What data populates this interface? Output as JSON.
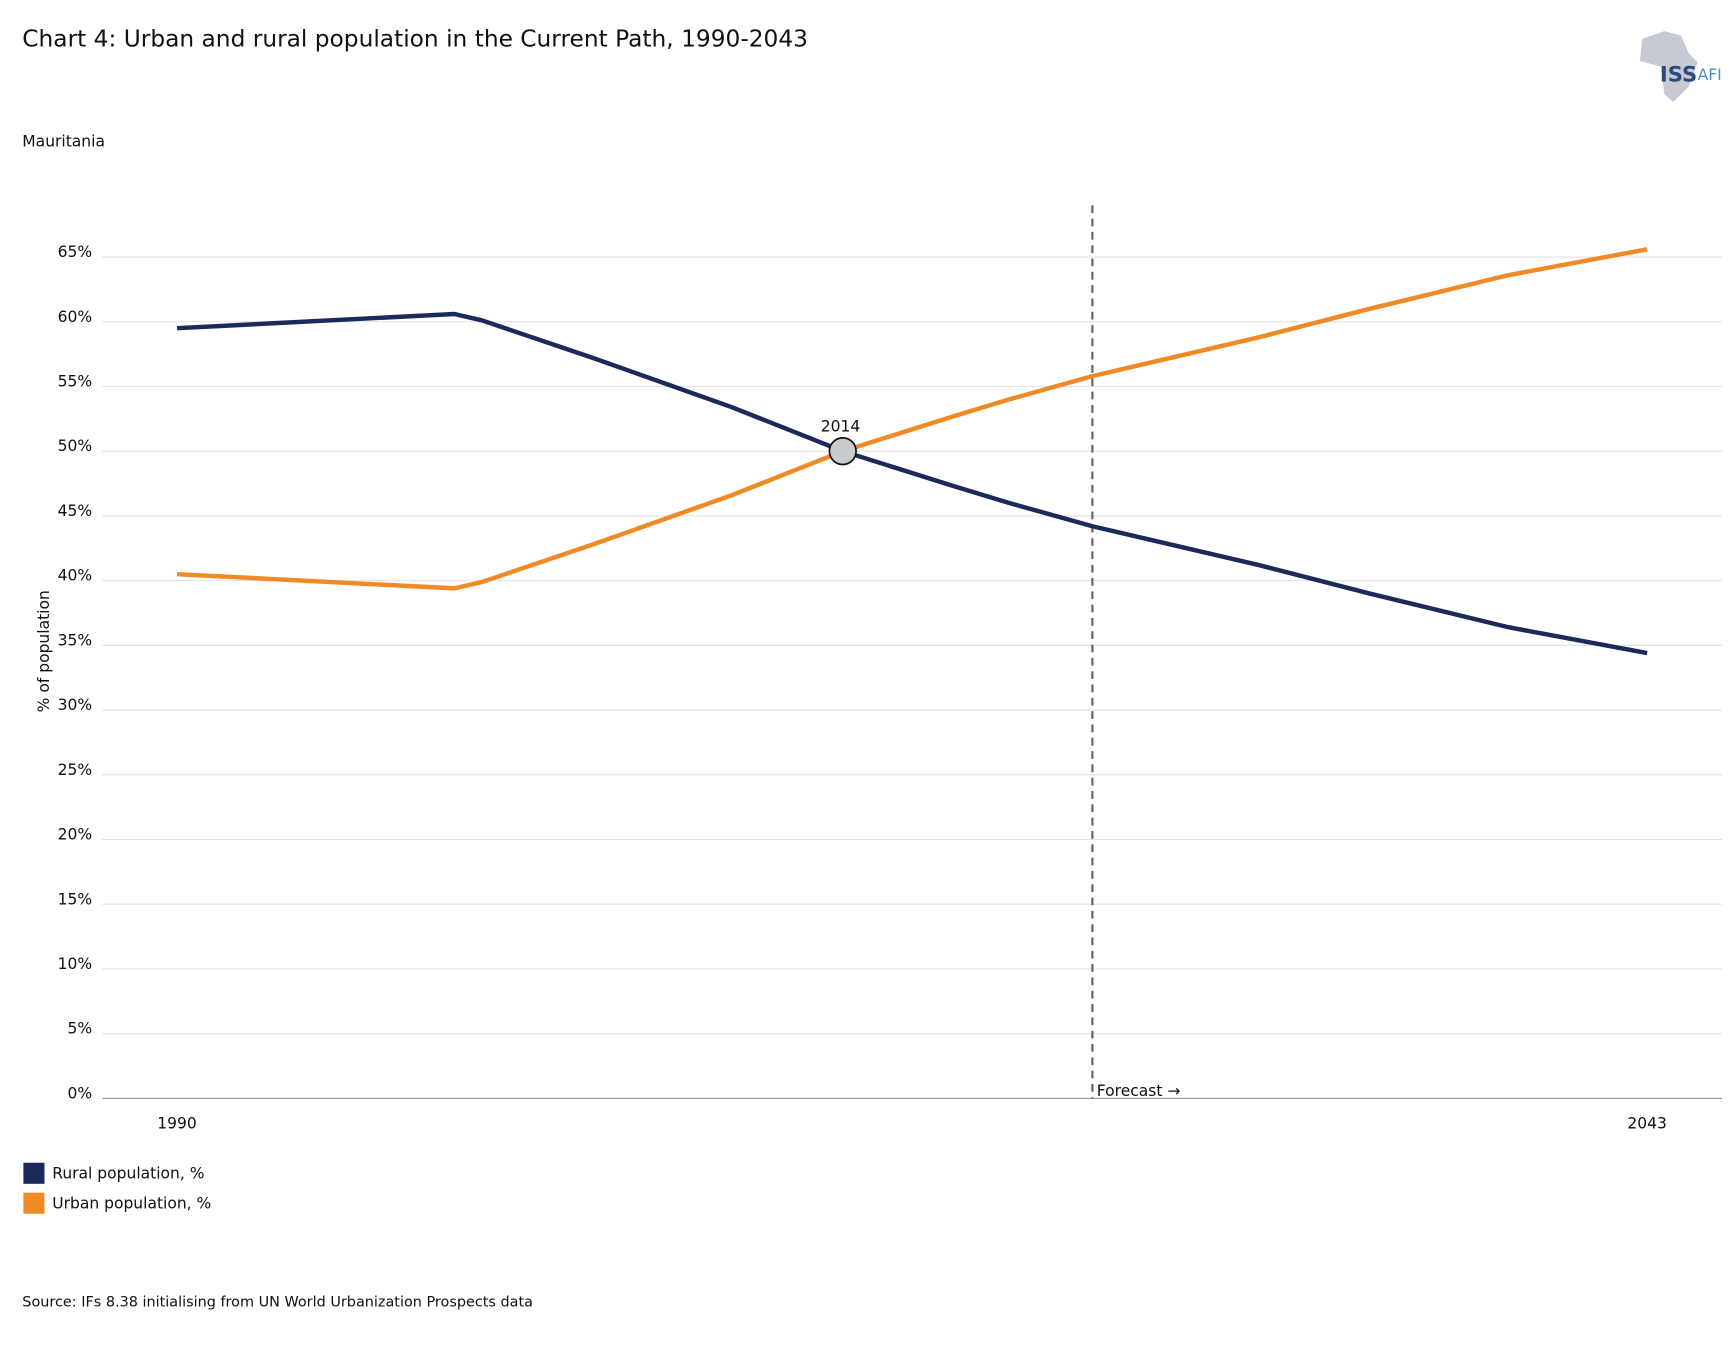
{
  "chart_data": {
    "type": "line",
    "title": "Chart 4: Urban and rural population in the Current Path, 1990-2043",
    "subtitle": "Mauritania",
    "ylabel": "% of population",
    "source": "Source: IFs 8.38 initialising from UN World Urbanization Prospects data",
    "logo": [
      "ISS",
      "AFI"
    ],
    "x": [
      1990,
      2000,
      2001,
      2005,
      2010,
      2014,
      2018,
      2020,
      2023,
      2029,
      2033,
      2038,
      2043
    ],
    "series": [
      {
        "name": "Rural population, %",
        "color": "#1b2a5a",
        "values": [
          59.5,
          60.6,
          60.1,
          57.2,
          53.4,
          50,
          47.3,
          46.0,
          44.2,
          41.2,
          39.0,
          36.4,
          34.4
        ]
      },
      {
        "name": "Urban population, %",
        "color": "#f08a24",
        "values": [
          40.5,
          39.4,
          39.9,
          42.8,
          46.6,
          50,
          52.7,
          54.0,
          55.8,
          58.8,
          61.0,
          63.6,
          65.6
        ]
      }
    ],
    "xlim": [
      1987.3,
      2045.7
    ],
    "xticks": [
      1990,
      2043
    ],
    "ylim": [
      0,
      69
    ],
    "yticks": [
      {
        "value": 0,
        "label": "0%"
      },
      {
        "value": 5,
        "label": "5%"
      },
      {
        "value": 10,
        "label": "10%"
      },
      {
        "value": 15,
        "label": "15%"
      },
      {
        "value": 20,
        "label": "20%"
      },
      {
        "value": 25,
        "label": "25%"
      },
      {
        "value": 30,
        "label": "30%"
      },
      {
        "value": 35,
        "label": "35%"
      },
      {
        "value": 40,
        "label": "40%"
      },
      {
        "value": 45,
        "label": "45%"
      },
      {
        "value": 50,
        "label": "50%"
      },
      {
        "value": 55,
        "label": "55%"
      },
      {
        "value": 60,
        "label": "60%"
      },
      {
        "value": 65,
        "label": "65%"
      }
    ],
    "grid": true,
    "annotations": [
      {
        "x": 2014,
        "y": 50,
        "label": "2014"
      }
    ],
    "forecast": {
      "x": 2023,
      "label": "Forecast →"
    },
    "legend": "bottom-left"
  }
}
